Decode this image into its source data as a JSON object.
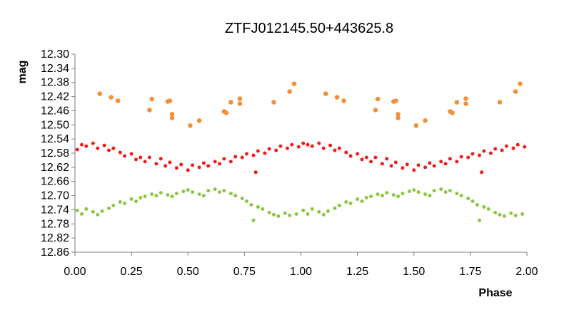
{
  "chart_data": {
    "type": "scatter",
    "title": "ZTFJ012145.50+443625.8",
    "xlabel": "Phase",
    "ylabel": "mag",
    "xlim": [
      0,
      2
    ],
    "ylim": [
      12.3,
      12.86
    ],
    "y_inverted": true,
    "grid": false,
    "legend": "none",
    "x_ticks": [
      "0.00",
      "0.25",
      "0.50",
      "0.75",
      "1.00",
      "1.25",
      "1.50",
      "1.75",
      "2.00"
    ],
    "y_ticks": [
      "12.30",
      "12.34",
      "12.38",
      "12.42",
      "12.46",
      "12.50",
      "12.54",
      "12.58",
      "12.62",
      "12.66",
      "12.70",
      "12.74",
      "12.78",
      "12.82",
      "12.86"
    ],
    "series": [
      {
        "color": "#f0913a",
        "x": [
          0.11,
          0.16,
          0.19,
          0.33,
          0.34,
          0.41,
          0.42,
          0.43,
          0.43,
          0.51,
          0.55,
          0.66,
          0.67,
          0.69,
          0.73,
          0.73,
          0.88,
          0.95,
          0.97,
          1.11,
          1.16,
          1.19,
          1.33,
          1.34,
          1.41,
          1.42,
          1.43,
          1.43,
          1.51,
          1.55,
          1.66,
          1.67,
          1.69,
          1.73,
          1.73,
          1.88,
          1.95,
          1.97
        ],
        "y": [
          12.412,
          12.422,
          12.432,
          12.458,
          12.427,
          12.434,
          12.432,
          12.47,
          12.48,
          12.502,
          12.488,
          12.462,
          12.466,
          12.436,
          12.44,
          12.426,
          12.436,
          12.406,
          12.384,
          12.412,
          12.422,
          12.432,
          12.458,
          12.427,
          12.434,
          12.432,
          12.47,
          12.48,
          12.502,
          12.488,
          12.462,
          12.466,
          12.436,
          12.44,
          12.426,
          12.436,
          12.406,
          12.384
        ]
      },
      {
        "color": "#ee1c1c",
        "x": [
          0.01,
          0.03,
          0.05,
          0.08,
          0.1,
          0.13,
          0.15,
          0.17,
          0.2,
          0.22,
          0.25,
          0.27,
          0.29,
          0.31,
          0.33,
          0.36,
          0.38,
          0.4,
          0.42,
          0.45,
          0.47,
          0.5,
          0.52,
          0.55,
          0.57,
          0.59,
          0.62,
          0.64,
          0.66,
          0.69,
          0.71,
          0.74,
          0.76,
          0.79,
          0.81,
          0.84,
          0.86,
          0.89,
          0.91,
          0.94,
          0.96,
          0.99,
          1.01,
          1.03,
          1.05,
          1.08,
          1.1,
          1.13,
          1.15,
          1.17,
          1.2,
          1.22,
          1.25,
          1.27,
          1.29,
          1.31,
          1.33,
          1.36,
          1.38,
          1.4,
          1.42,
          1.45,
          1.47,
          1.5,
          1.52,
          1.55,
          1.57,
          1.59,
          1.62,
          1.64,
          1.66,
          1.69,
          1.71,
          1.74,
          1.76,
          1.79,
          1.81,
          1.84,
          1.86,
          1.89,
          1.91,
          1.94,
          1.96,
          1.99,
          0.8,
          1.8
        ],
        "y": [
          12.57,
          12.556,
          12.56,
          12.552,
          12.566,
          12.558,
          12.572,
          12.566,
          12.578,
          12.588,
          12.582,
          12.598,
          12.592,
          12.604,
          12.592,
          12.61,
          12.596,
          12.616,
          12.606,
          12.622,
          12.612,
          12.628,
          12.614,
          12.62,
          12.608,
          12.616,
          12.604,
          12.61,
          12.596,
          12.604,
          12.59,
          12.592,
          12.582,
          12.586,
          12.574,
          12.58,
          12.568,
          12.572,
          12.56,
          12.566,
          12.556,
          12.562,
          12.552,
          12.556,
          12.56,
          12.552,
          12.566,
          12.558,
          12.572,
          12.566,
          12.578,
          12.588,
          12.582,
          12.598,
          12.592,
          12.604,
          12.592,
          12.61,
          12.596,
          12.616,
          12.606,
          12.622,
          12.612,
          12.628,
          12.614,
          12.62,
          12.608,
          12.616,
          12.604,
          12.61,
          12.596,
          12.604,
          12.59,
          12.592,
          12.582,
          12.586,
          12.574,
          12.58,
          12.568,
          12.572,
          12.56,
          12.566,
          12.556,
          12.562,
          12.634,
          12.634
        ]
      },
      {
        "color": "#8ec63f",
        "x": [
          0.01,
          0.03,
          0.05,
          0.08,
          0.1,
          0.12,
          0.15,
          0.17,
          0.2,
          0.22,
          0.25,
          0.27,
          0.29,
          0.31,
          0.34,
          0.36,
          0.38,
          0.41,
          0.43,
          0.45,
          0.48,
          0.5,
          0.52,
          0.55,
          0.57,
          0.59,
          0.62,
          0.64,
          0.66,
          0.69,
          0.71,
          0.74,
          0.76,
          0.78,
          0.81,
          0.83,
          0.86,
          0.88,
          0.9,
          0.93,
          0.95,
          0.98,
          1.01,
          1.03,
          1.05,
          1.08,
          1.1,
          1.12,
          1.15,
          1.17,
          1.2,
          1.22,
          1.25,
          1.27,
          1.29,
          1.31,
          1.34,
          1.36,
          1.38,
          1.41,
          1.43,
          1.45,
          1.48,
          1.5,
          1.52,
          1.55,
          1.57,
          1.59,
          1.62,
          1.64,
          1.66,
          1.69,
          1.71,
          1.74,
          1.76,
          1.78,
          1.81,
          1.83,
          1.86,
          1.88,
          1.9,
          1.93,
          1.95,
          1.98,
          0.79,
          1.79
        ],
        "y": [
          12.742,
          12.752,
          12.738,
          12.746,
          12.754,
          12.744,
          12.736,
          12.728,
          12.718,
          12.722,
          12.71,
          12.716,
          12.706,
          12.702,
          12.696,
          12.7,
          12.692,
          12.698,
          12.702,
          12.694,
          12.688,
          12.684,
          12.69,
          12.696,
          12.7,
          12.686,
          12.682,
          12.69,
          12.686,
          12.694,
          12.7,
          12.708,
          12.716,
          12.726,
          12.732,
          12.738,
          12.748,
          12.754,
          12.758,
          12.75,
          12.756,
          12.752,
          12.742,
          12.752,
          12.738,
          12.746,
          12.754,
          12.744,
          12.736,
          12.728,
          12.718,
          12.722,
          12.71,
          12.716,
          12.706,
          12.702,
          12.696,
          12.7,
          12.692,
          12.698,
          12.702,
          12.694,
          12.688,
          12.684,
          12.69,
          12.696,
          12.7,
          12.686,
          12.682,
          12.69,
          12.686,
          12.694,
          12.7,
          12.708,
          12.716,
          12.726,
          12.732,
          12.738,
          12.748,
          12.754,
          12.758,
          12.75,
          12.756,
          12.752,
          12.77,
          12.77
        ]
      }
    ]
  }
}
